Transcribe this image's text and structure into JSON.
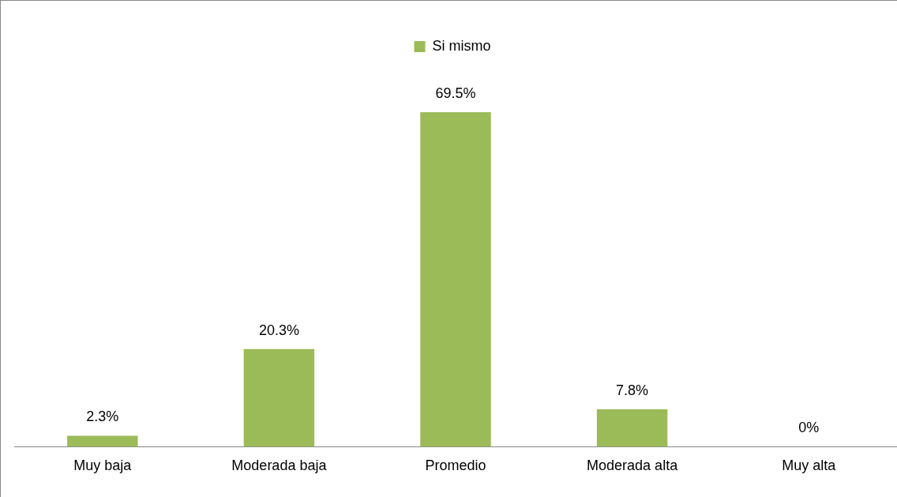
{
  "chart_data": {
    "type": "bar",
    "categories": [
      "Muy baja",
      "Moderada baja",
      "Promedio",
      "Moderada alta",
      "Muy alta"
    ],
    "series": [
      {
        "name": "Si mismo",
        "color": "#9bbb59",
        "values": [
          2.3,
          20.3,
          69.5,
          7.8,
          0
        ],
        "value_labels": [
          "2.3%",
          "20.3%",
          "69.5%",
          "7.8%",
          "0%"
        ]
      }
    ],
    "legend": "top",
    "grid": false
  }
}
